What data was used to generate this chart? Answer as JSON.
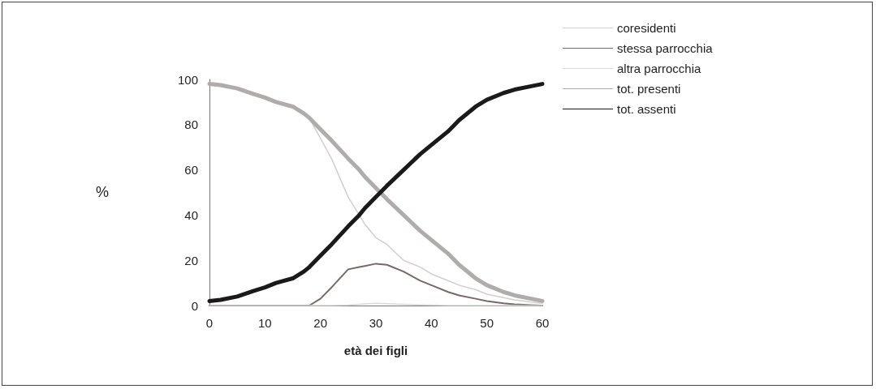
{
  "chart_data": {
    "type": "line",
    "xlabel": "età dei figli",
    "ylabel": "%",
    "x": [
      0,
      2,
      5,
      8,
      10,
      12,
      15,
      17,
      18,
      20,
      22,
      25,
      27,
      28,
      30,
      32,
      35,
      38,
      40,
      43,
      45,
      48,
      50,
      53,
      55,
      58,
      60
    ],
    "xlim": [
      0,
      60
    ],
    "xticks": [
      0,
      10,
      20,
      30,
      40,
      50,
      60
    ],
    "ylim": [
      0,
      100
    ],
    "yticks": [
      0,
      20,
      40,
      60,
      80,
      100
    ],
    "grid": false,
    "legend": "top right",
    "marker": "none",
    "series": [
      {
        "name": "coresidenti",
        "color": "#d2cece",
        "values": [
          98,
          97.5,
          96,
          93.5,
          92,
          90,
          88,
          85,
          83,
          74,
          65,
          48,
          40,
          36,
          30,
          27,
          20,
          17,
          14,
          11,
          9,
          7,
          5,
          3.5,
          2.5,
          1.5,
          1
        ]
      },
      {
        "name": "stessa parrocchia",
        "color": "#7a6868",
        "values": [
          0,
          0,
          0,
          0,
          0,
          0,
          0,
          0,
          0,
          3,
          8,
          16,
          17,
          17.5,
          18.5,
          18,
          15,
          11,
          9,
          6,
          4.5,
          3,
          2,
          1,
          0.5,
          0.2,
          0
        ]
      },
      {
        "name": "altra parrocchia",
        "color": "#dcd8d8",
        "values": [
          0,
          0,
          0,
          0,
          0,
          0,
          0,
          0,
          0,
          0,
          0,
          0.2,
          0.5,
          0.7,
          1,
          0.8,
          0.5,
          0.3,
          0.2,
          0,
          0,
          0,
          0,
          0,
          0,
          0,
          0
        ]
      },
      {
        "name": "tot. presenti",
        "color": "#b0acac",
        "values": [
          98,
          97.5,
          96,
          93.5,
          92,
          90,
          88,
          85,
          83,
          78,
          73,
          65,
          60,
          57,
          52,
          47,
          40,
          33,
          29,
          23,
          18,
          12,
          9,
          6,
          4.5,
          3,
          2
        ]
      },
      {
        "name": "tot. assenti",
        "color": "#1a1a1a",
        "values": [
          2,
          2.5,
          4,
          6.5,
          8,
          10,
          12,
          15,
          17,
          22,
          27,
          35,
          40,
          43,
          48,
          53,
          60,
          67,
          71,
          77,
          82,
          88,
          91,
          94,
          95.5,
          97,
          98
        ]
      }
    ]
  }
}
